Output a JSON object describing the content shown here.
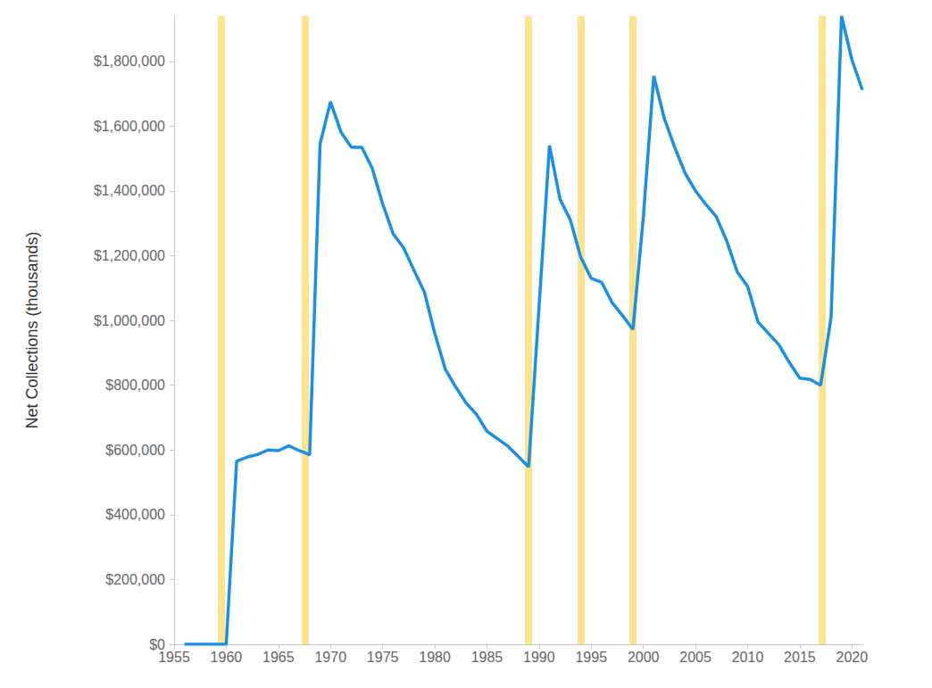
{
  "chart_data": {
    "type": "line",
    "y_label": "Net Collections (thousands)",
    "x": [
      1956,
      1957,
      1958,
      1959,
      1960,
      1961,
      1962,
      1963,
      1964,
      1965,
      1966,
      1967,
      1968,
      1969,
      1970,
      1971,
      1972,
      1973,
      1974,
      1975,
      1976,
      1977,
      1978,
      1979,
      1980,
      1981,
      1982,
      1983,
      1984,
      1985,
      1986,
      1987,
      1988,
      1989,
      1991,
      1992,
      1993,
      1994,
      1995,
      1996,
      1997,
      1998,
      1999,
      2000,
      2001,
      2002,
      2003,
      2004,
      2005,
      2006,
      2007,
      2008,
      2009,
      2010,
      2011,
      2012,
      2013,
      2014,
      2015,
      2016,
      2017,
      2018,
      2019,
      2020,
      2021
    ],
    "values": [
      0,
      0,
      0,
      0,
      0,
      565000,
      578000,
      586000,
      600000,
      598000,
      613000,
      598000,
      585000,
      1545000,
      1675000,
      1582000,
      1535000,
      1535000,
      1470000,
      1360000,
      1268000,
      1225000,
      1155000,
      1088000,
      960000,
      850000,
      795000,
      745000,
      710000,
      658000,
      635000,
      612000,
      580000,
      548000,
      1540000,
      1375000,
      1310000,
      1195000,
      1130000,
      1118000,
      1055000,
      1015000,
      972000,
      1320000,
      1755000,
      1625000,
      1535000,
      1455000,
      1400000,
      1358000,
      1320000,
      1245000,
      1150000,
      1105000,
      995000,
      960000,
      925000,
      870000,
      822000,
      818000,
      800000,
      1010000,
      1940000,
      1805000,
      1712000
    ],
    "color": "#1a8fe6",
    "bands": [
      1959.5,
      1967.6,
      1989.0,
      1994.0,
      1999.0,
      2017.1
    ],
    "xlim": [
      1955,
      2021
    ],
    "xticks": [
      1955,
      1960,
      1965,
      1970,
      1975,
      1980,
      1985,
      1990,
      1995,
      2000,
      2005,
      2010,
      2015,
      2020
    ],
    "ylim": [
      0,
      1940000
    ],
    "yticks": [
      {
        "value": 0,
        "label": "$0"
      },
      {
        "value": 200000,
        "label": "$200,000"
      },
      {
        "value": 400000,
        "label": "$400,000"
      },
      {
        "value": 600000,
        "label": "$600,000"
      },
      {
        "value": 800000,
        "label": "$800,000"
      },
      {
        "value": 1000000,
        "label": "$1,000,000"
      },
      {
        "value": 1200000,
        "label": "$1,200,000"
      },
      {
        "value": 1400000,
        "label": "$1,400,000"
      },
      {
        "value": 1600000,
        "label": "$1,600,000"
      },
      {
        "value": 1800000,
        "label": "$1,800,000"
      }
    ],
    "grid": false
  }
}
